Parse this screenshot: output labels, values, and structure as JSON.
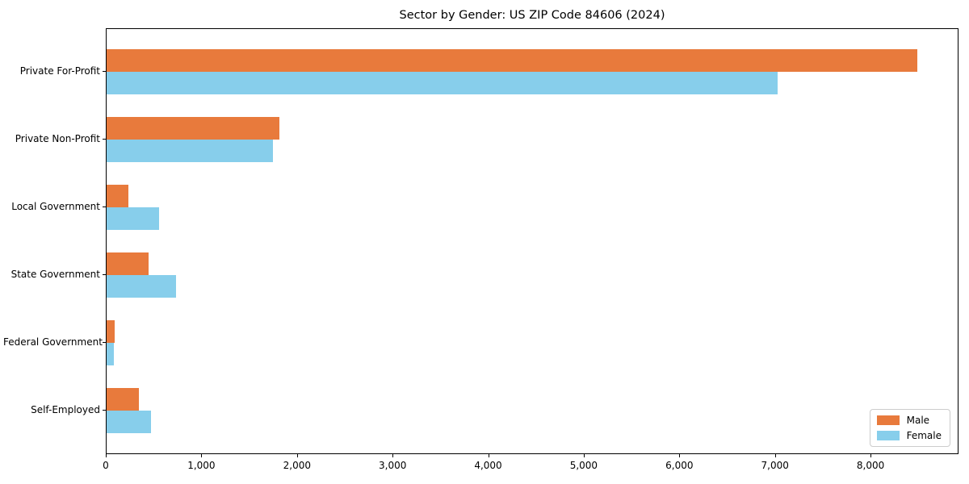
{
  "title": "Sector by Gender: US ZIP Code 84606 (2024)",
  "chart_data": {
    "type": "bar",
    "orientation": "horizontal",
    "title": "Sector by Gender: US ZIP Code 84606 (2024)",
    "categories": [
      "Private For-Profit",
      "Private Non-Profit",
      "Local Government",
      "State Government",
      "Federal Government",
      "Self-Employed"
    ],
    "series": [
      {
        "name": "Male",
        "color": "#E87A3C",
        "values": [
          8480,
          1810,
          225,
          440,
          85,
          340
        ]
      },
      {
        "name": "Female",
        "color": "#87CEEB",
        "values": [
          7020,
          1740,
          545,
          730,
          75,
          465
        ]
      }
    ],
    "xlabel": "",
    "ylabel": "",
    "xlim": [
      0,
      8920
    ],
    "x_ticks": [
      0,
      1000,
      2000,
      3000,
      4000,
      5000,
      6000,
      7000,
      8000
    ],
    "x_tick_labels": [
      "0",
      "1,000",
      "2,000",
      "3,000",
      "4,000",
      "5,000",
      "6,000",
      "7,000",
      "8,000"
    ],
    "grid": false,
    "legend_position": "lower right",
    "axis_color": "#000000",
    "background_color": "#ffffff"
  }
}
